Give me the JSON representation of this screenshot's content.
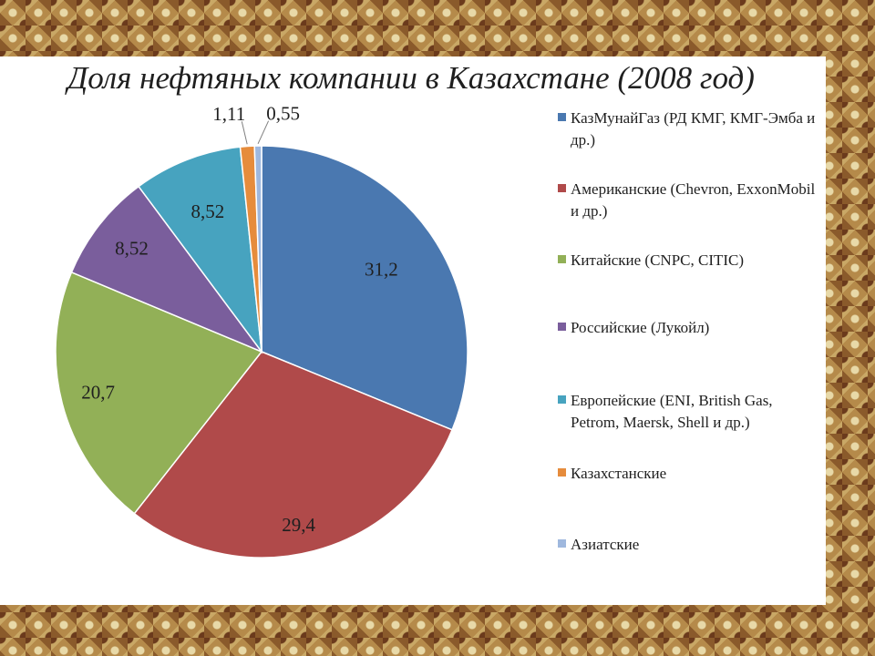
{
  "chart_data": {
    "type": "pie",
    "title": "Доля нефтяных компании в Казахстане (2008 год)",
    "categories": [
      "КазМунайГаз (РД КМГ, КМГ-Эмба и др.)",
      "Американские (Chevron, ExxonMobil и др.)",
      "Китайские (CNPC, CITIC)",
      "Российские (Лукойл)",
      "Европейские (ENI, British Gas, Petrom, Maersk, Shell и др.)",
      "Казахстанские",
      "Азиатские"
    ],
    "values": [
      31.2,
      29.4,
      20.7,
      8.52,
      8.52,
      1.11,
      0.55
    ],
    "value_labels": [
      "31,2",
      "29,4",
      "20,7",
      "8,52",
      "8,52",
      "1,11",
      "0,55"
    ],
    "colors": [
      "#4a78b0",
      "#b04a4a",
      "#92b057",
      "#7a5e9c",
      "#47a3bf",
      "#e68c3c",
      "#9fb8de"
    ],
    "legend_position": "right"
  }
}
